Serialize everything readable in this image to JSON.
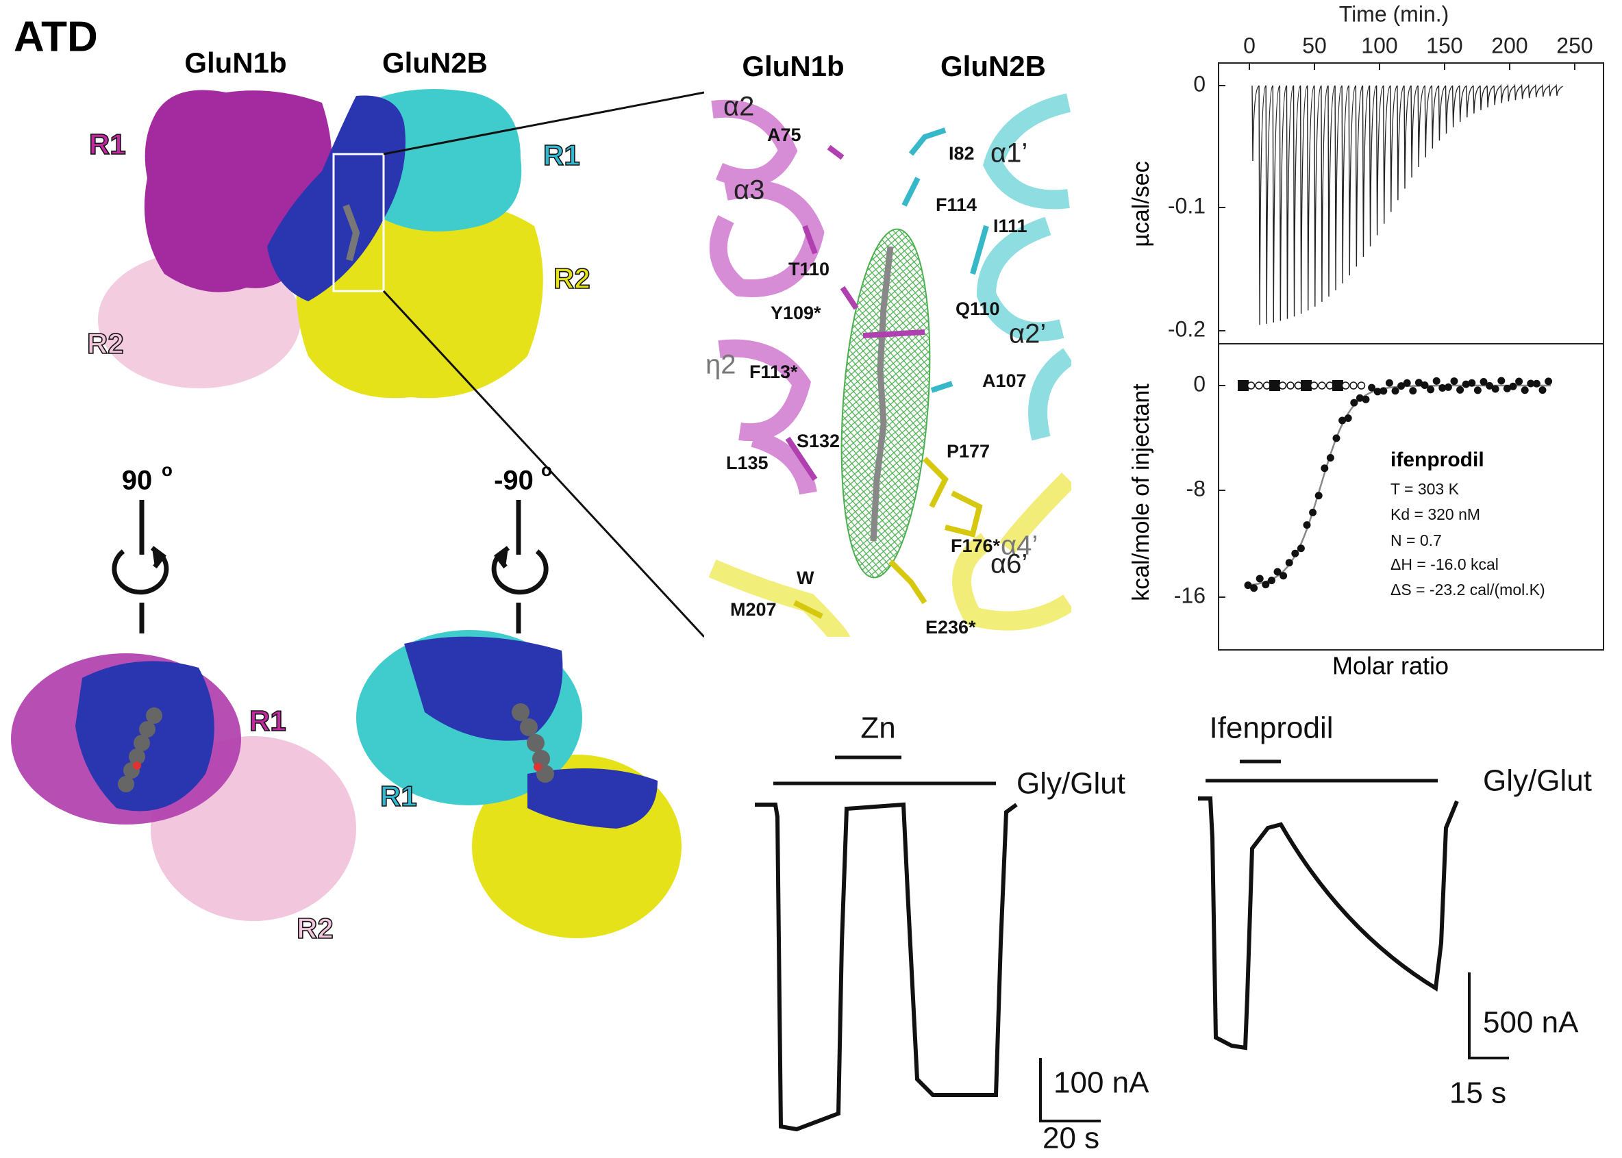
{
  "panel_label": "ATD",
  "overview": {
    "subunits": [
      "GluN1b",
      "GluN2B"
    ],
    "domains": [
      "R1",
      "R1",
      "R2",
      "R2"
    ]
  },
  "rotations": [
    {
      "angle": "90",
      "degree": "o"
    },
    {
      "angle": "-90",
      "degree": "o"
    }
  ],
  "rotated_views": [
    {
      "labels": [
        "R1",
        "R2"
      ]
    },
    {
      "labels": [
        "R1"
      ]
    }
  ],
  "inset": {
    "subunits": [
      "GluN1b",
      "GluN2B"
    ],
    "labels": [
      "α2",
      "A75",
      "I82",
      "α1’",
      "α3",
      "F114",
      "I111",
      "T110",
      "Y109*",
      "Q110",
      "α2’",
      "F113*",
      "A107",
      "η2",
      "S132",
      "L135",
      "P177",
      "F176*",
      "α4’",
      "W",
      "α6’",
      "M207",
      "E236*"
    ]
  },
  "itc": {
    "time_axis_title": "Time (min.)",
    "time_ticks": [
      "0",
      "50",
      "100",
      "150",
      "200",
      "250"
    ],
    "power_axis_title": "µcal/sec",
    "power_ticks": [
      "0",
      "-0.1",
      "-0.2"
    ],
    "heat_axis_title": "kcal/mole of injectant",
    "heat_ticks": [
      "0",
      "-8",
      "-16"
    ],
    "x_axis_title": "Molar ratio",
    "fit": {
      "ligand": "ifenprodil",
      "parameters": [
        "T = 303 K",
        "Kd = 320 nM",
        "N = 0.7",
        "ΔH = -16.0 kcal",
        "ΔS = -23.2 cal/(mol.K)"
      ]
    }
  },
  "recordings": [
    {
      "drug": "Zn",
      "agonist": "Gly/Glut",
      "current_scale": "100 nA",
      "time_scale": "20 s"
    },
    {
      "drug": "Ifenprodil",
      "agonist": "Gly/Glut",
      "current_scale": "500 nA",
      "time_scale": "15 s"
    }
  ]
}
